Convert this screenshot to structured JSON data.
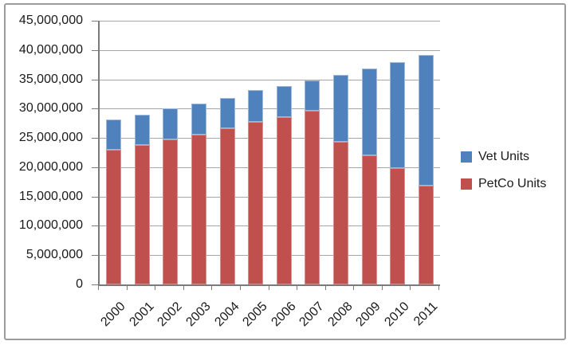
{
  "chart_data": {
    "type": "bar",
    "stacked": true,
    "title": "",
    "categories": [
      "2000",
      "2001",
      "2002",
      "2003",
      "2004",
      "2005",
      "2006",
      "2007",
      "2008",
      "2009",
      "2010",
      "2011"
    ],
    "series": [
      {
        "name": "PetCo Units",
        "color": "#c0504d",
        "border_color": "#d9908e",
        "values": [
          23000000,
          23800000,
          24800000,
          25600000,
          26600000,
          27700000,
          28500000,
          29600000,
          24400000,
          22000000,
          19800000,
          16900000
        ]
      },
      {
        "name": "Vet Units",
        "color": "#4f81bd",
        "border_color": "#9db9dc",
        "values": [
          5100000,
          5200000,
          5200000,
          5200000,
          5200000,
          5500000,
          5400000,
          5200000,
          11400000,
          14800000,
          18100000,
          22200000
        ]
      }
    ],
    "legend": [
      {
        "label": "Vet Units",
        "color": "#4f81bd"
      },
      {
        "label": "PetCo Units",
        "color": "#c0504d"
      }
    ],
    "legend_position": "right",
    "xlabel": "",
    "ylabel": "",
    "ylim": [
      0,
      45000000
    ],
    "ytick_step": 5000000,
    "ytick_labels": [
      "0",
      "5,000,000",
      "10,000,000",
      "15,000,000",
      "20,000,000",
      "25,000,000",
      "30,000,000",
      "35,000,000",
      "40,000,000",
      "45,000,000"
    ],
    "x_label_rotation": -45,
    "grid": true,
    "colors": {
      "gridline": "#a6a6a6",
      "axis_line": "#7a7a7a",
      "text": "#1a1a1a",
      "frame_border": "#9b9b9b",
      "background": "#ffffff"
    }
  }
}
